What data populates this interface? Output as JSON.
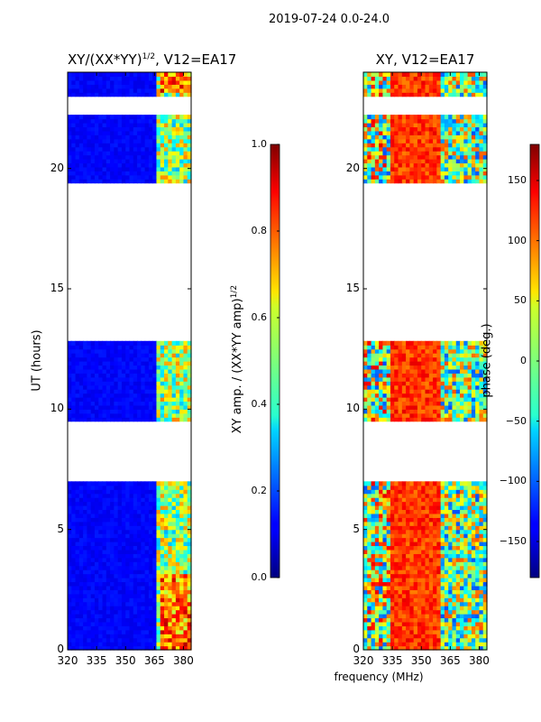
{
  "suptitle": "2019-07-24 0.0-24.0",
  "chart_data": [
    {
      "type": "heatmap",
      "title": "XY/(XX*YY)^1/2, V12=EA17",
      "title_main": "XY/(XX*YY)",
      "title_sup": "1/2",
      "title_tail": ", V12=EA17",
      "xlabel": "",
      "ylabel": "UT (hours)",
      "xlim": [
        320,
        384
      ],
      "ylim": [
        0,
        24
      ],
      "xticks": [
        "320",
        "335",
        "350",
        "365",
        "380"
      ],
      "xtick_values": [
        320,
        335,
        350,
        365,
        380
      ],
      "yticks": [
        "0",
        "5",
        "10",
        "15",
        "20"
      ],
      "ytick_values": [
        0,
        5,
        10,
        15,
        20
      ],
      "data_blocks_hours": [
        [
          0,
          7.0
        ],
        [
          9.5,
          12.8
        ],
        [
          19.4,
          22.2
        ],
        [
          23.0,
          24.0
        ]
      ],
      "colorbar": {
        "label_main": "XY amp. / (XX*YY amp)",
        "label_sup": "1/2",
        "range": [
          0.0,
          1.0
        ],
        "ticks": [
          "0.0",
          "0.2",
          "0.4",
          "0.6",
          "0.8",
          "1.0"
        ],
        "tick_values": [
          0.0,
          0.2,
          0.4,
          0.6,
          0.8,
          1.0
        ]
      }
    },
    {
      "type": "heatmap",
      "title": "XY, V12=EA17",
      "xlabel": "frequency (MHz)",
      "ylabel": "",
      "xlim": [
        320,
        384
      ],
      "ylim": [
        0,
        24
      ],
      "xticks": [
        "320",
        "335",
        "350",
        "365",
        "380"
      ],
      "xtick_values": [
        320,
        335,
        350,
        365,
        380
      ],
      "yticks": [
        "0",
        "5",
        "10",
        "15",
        "20"
      ],
      "ytick_values": [
        0,
        5,
        10,
        15,
        20
      ],
      "data_blocks_hours": [
        [
          0,
          7.0
        ],
        [
          9.5,
          12.8
        ],
        [
          19.4,
          22.2
        ],
        [
          23.0,
          24.0
        ]
      ],
      "colorbar": {
        "label": "phase (deg.)",
        "range": [
          -180,
          180
        ],
        "ticks": [
          "−150",
          "−100",
          "−50",
          "0",
          "50",
          "100",
          "150"
        ],
        "tick_values": [
          -150,
          -100,
          -50,
          0,
          50,
          100,
          150
        ]
      }
    }
  ]
}
